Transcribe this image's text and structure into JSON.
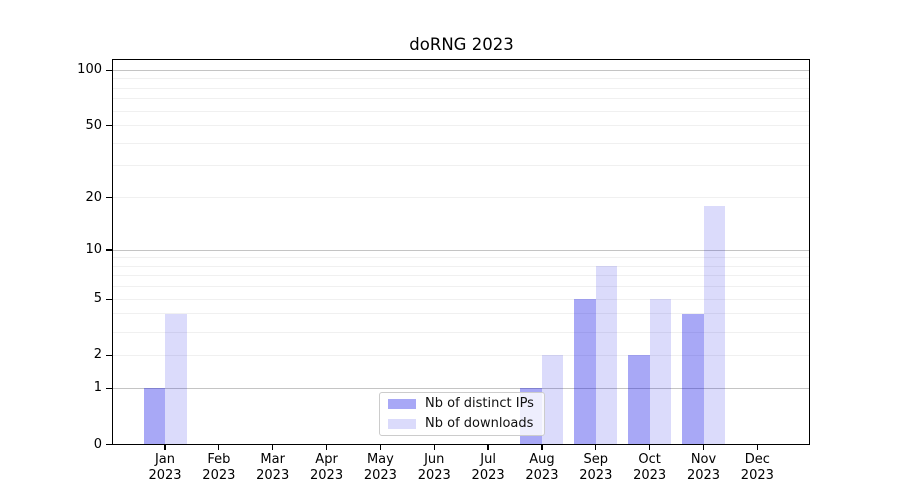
{
  "chart_data": {
    "type": "bar",
    "title": "doRNG 2023",
    "x_axis": {
      "months": [
        "Jan",
        "Feb",
        "Mar",
        "Apr",
        "May",
        "Jun",
        "Jul",
        "Aug",
        "Sep",
        "Oct",
        "Nov",
        "Dec"
      ],
      "year": "2023"
    },
    "y_axis": {
      "scale": "log1p",
      "tick_values": [
        0,
        1,
        2,
        5,
        10,
        20,
        50,
        100
      ],
      "tick_labels": [
        "0",
        "1",
        "2",
        "5",
        "10",
        "20",
        "50",
        "100"
      ],
      "major_gridlines": [
        1,
        10,
        100
      ],
      "minor_gridlines": [
        2,
        3,
        4,
        5,
        6,
        7,
        8,
        9,
        20,
        30,
        40,
        50,
        60,
        70,
        80,
        90
      ],
      "range_top": 113
    },
    "series": [
      {
        "name": "Nb of distinct IPs",
        "color": "#0000e6",
        "alpha": 0.34,
        "values": [
          1,
          0,
          0,
          0,
          0,
          0,
          0,
          1,
          5,
          2,
          4,
          0
        ]
      },
      {
        "name": "Nb of downloads",
        "color": "#0000e6",
        "alpha": 0.14,
        "values": [
          4,
          0,
          0,
          0,
          0,
          0,
          0,
          2,
          8,
          5,
          18,
          0
        ]
      }
    ],
    "legend": {
      "entries": [
        "Nb of distinct IPs",
        "Nb of downloads"
      ],
      "position": "lower center"
    },
    "grid": true,
    "colors": {
      "grid_minor": "#f0f0f0",
      "grid_major": "#c4c4c4",
      "axis": "#000000",
      "legend_border": "#cccccc",
      "text": "#000000"
    }
  }
}
